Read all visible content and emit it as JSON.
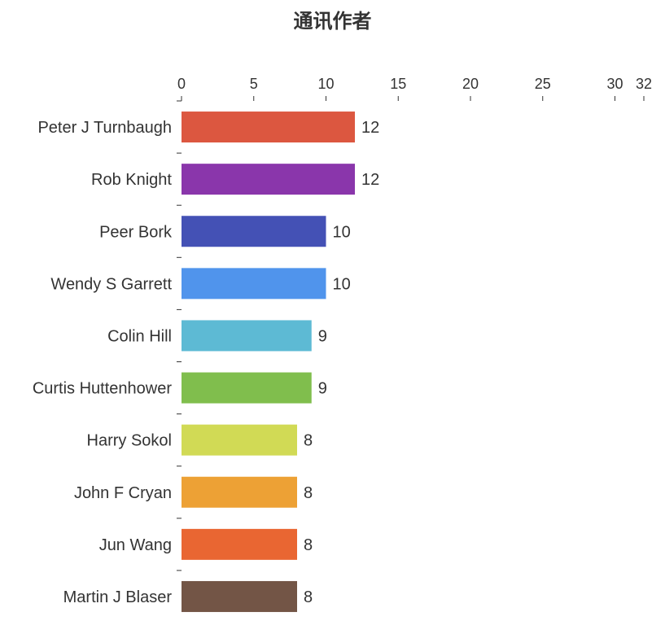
{
  "chart_data": {
    "type": "bar",
    "orientation": "horizontal",
    "title": "通讯作者",
    "xlabel": "",
    "ylabel": "",
    "xlim": [
      0,
      32
    ],
    "x_ticks": [
      0,
      5,
      10,
      15,
      20,
      25,
      30,
      32
    ],
    "x_axis_position": "top",
    "grid": false,
    "legend": "none",
    "categories": [
      "Peter J Turnbaugh",
      "Rob Knight",
      "Peer Bork",
      "Wendy S Garrett",
      "Colin Hill",
      "Curtis Huttenhower",
      "Harry Sokol",
      "John F Cryan",
      "Jun Wang",
      "Martin J Blaser"
    ],
    "values": [
      12,
      12,
      10,
      10,
      9,
      9,
      8,
      8,
      8,
      8
    ],
    "colors": [
      "#dc5740",
      "#8a36ab",
      "#4451b5",
      "#5094ec",
      "#5dbad4",
      "#80be4d",
      "#d1da55",
      "#eda135",
      "#e96632",
      "#735546"
    ],
    "data_labels": [
      "12",
      "12",
      "10",
      "10",
      "9",
      "9",
      "8",
      "8",
      "8",
      "8"
    ]
  }
}
